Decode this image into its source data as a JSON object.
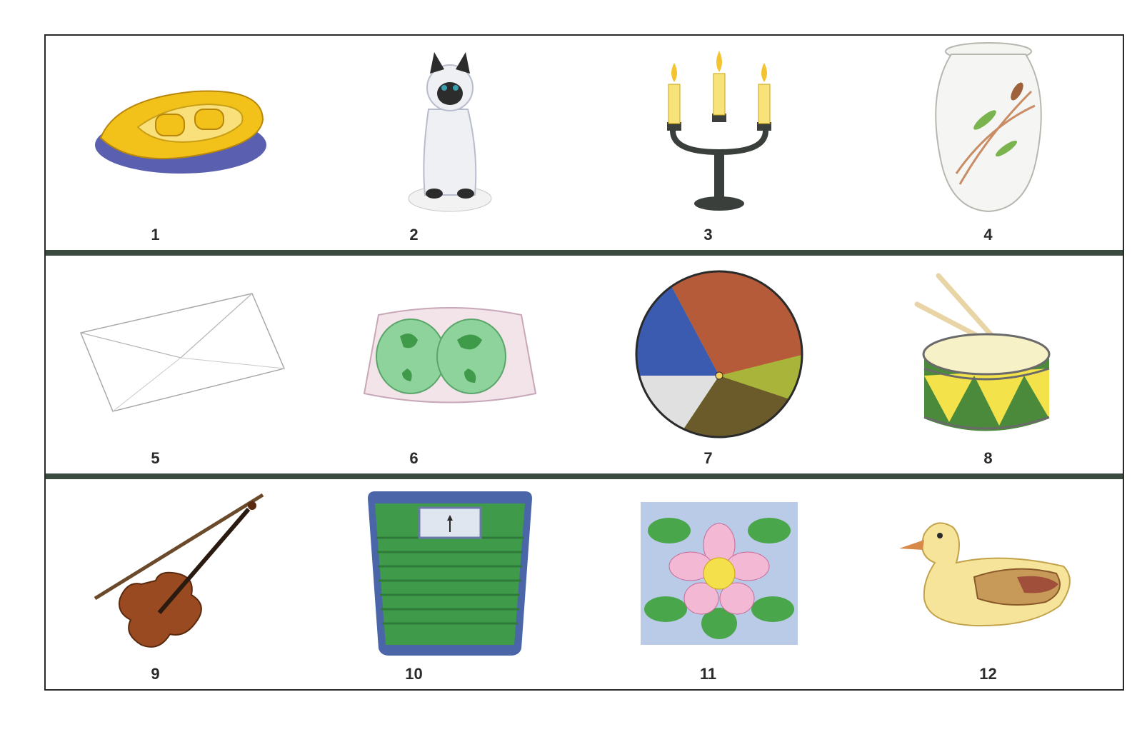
{
  "items": [
    {
      "number": "1",
      "icon": "inflatable-boat-icon"
    },
    {
      "number": "2",
      "icon": "cat-statue-icon"
    },
    {
      "number": "3",
      "icon": "candelabra-icon"
    },
    {
      "number": "4",
      "icon": "vase-icon"
    },
    {
      "number": "5",
      "icon": "envelope-icon"
    },
    {
      "number": "6",
      "icon": "lampshade-icon"
    },
    {
      "number": "7",
      "icon": "beach-ball-icon"
    },
    {
      "number": "8",
      "icon": "drum-icon"
    },
    {
      "number": "9",
      "icon": "violin-icon"
    },
    {
      "number": "10",
      "icon": "bathroom-scale-icon"
    },
    {
      "number": "11",
      "icon": "flower-tile-icon"
    },
    {
      "number": "12",
      "icon": "duck-decoy-icon"
    }
  ],
  "colors": {
    "frame": "#2a2a2a",
    "divider": "#3b4a3f",
    "yellow": "#f2c21b",
    "green": "#3f9a4a",
    "blue": "#4b5fb3"
  }
}
